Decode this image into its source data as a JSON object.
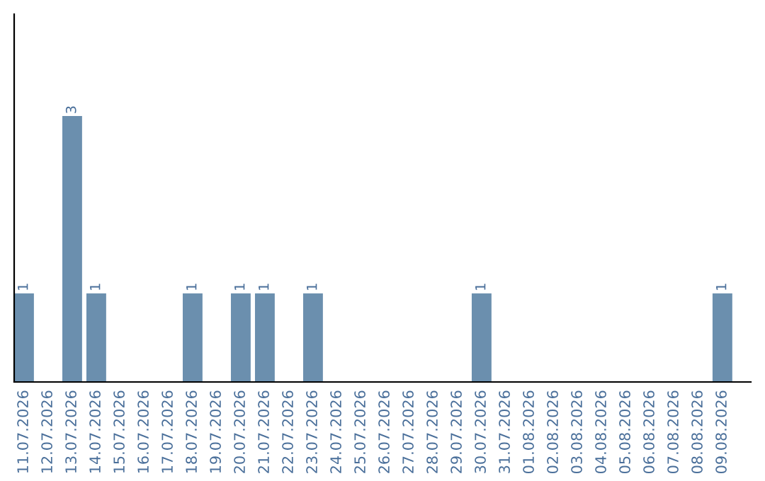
{
  "chart_data": {
    "type": "bar",
    "categories": [
      "11.07.2026",
      "12.07.2026",
      "13.07.2026",
      "14.07.2026",
      "15.07.2026",
      "16.07.2026",
      "17.07.2026",
      "18.07.2026",
      "19.07.2026",
      "20.07.2026",
      "21.07.2026",
      "22.07.2026",
      "23.07.2026",
      "24.07.2026",
      "25.07.2026",
      "26.07.2026",
      "27.07.2026",
      "28.07.2026",
      "29.07.2026",
      "30.07.2026",
      "31.07.2026",
      "01.08.2026",
      "02.08.2026",
      "03.08.2026",
      "04.08.2026",
      "05.08.2026",
      "06.08.2026",
      "07.08.2026",
      "08.08.2026",
      "09.08.2026"
    ],
    "values": [
      1,
      0,
      3,
      1,
      0,
      0,
      0,
      1,
      0,
      1,
      1,
      0,
      1,
      0,
      0,
      0,
      0,
      0,
      0,
      1,
      0,
      0,
      0,
      0,
      0,
      0,
      0,
      0,
      0,
      1
    ],
    "value_labels": [
      "1",
      null,
      "3",
      "1",
      null,
      null,
      null,
      "1",
      null,
      "1",
      "1",
      null,
      "1",
      null,
      null,
      null,
      null,
      null,
      null,
      "1",
      null,
      null,
      null,
      null,
      null,
      null,
      null,
      null,
      null,
      "1"
    ],
    "color": "#6b8fae",
    "ylim": [
      0,
      4.15
    ],
    "tick_labels": "x",
    "grid": false,
    "legend": false
  }
}
